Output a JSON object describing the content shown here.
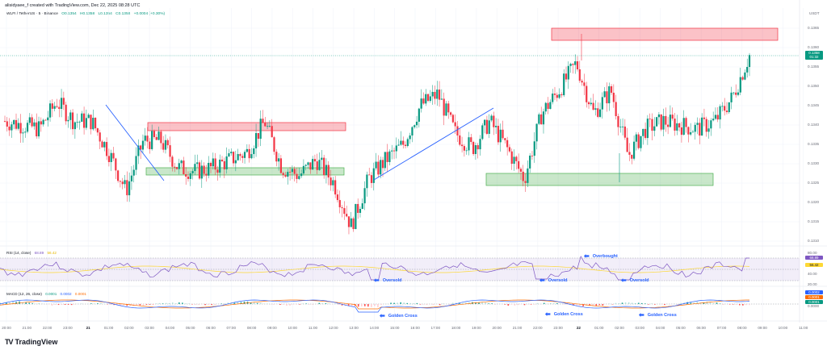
{
  "header": {
    "credit": "alisidyaee_f created with TradingView.com, Dec 22, 2025 08:28 UTC"
  },
  "symbol": {
    "title": "WLFI / TetherUS · 5 · Binance",
    "open": "O0.1354",
    "high": "H0.1358",
    "low": "L0.1354",
    "close": "C0.1358",
    "change": "+0.0004 (+0.30%)"
  },
  "price_axis": {
    "currency": "USDT",
    "ticks": [
      "0.1365",
      "0.1360",
      "0.1355",
      "0.1350",
      "0.1345",
      "0.1340",
      "0.1335",
      "0.1330",
      "0.1325",
      "0.1320",
      "0.1315",
      "0.1310"
    ],
    "current_price": "0.1358",
    "countdown": "01:32"
  },
  "rsi": {
    "label": "RSI (14, close)",
    "value": "68.89",
    "ma_value": "56.42",
    "ticks": [
      "80.00",
      "40.00",
      "20.00"
    ]
  },
  "macd": {
    "label": "MACD (12, 26, close)",
    "hist": "0.0001",
    "macd": "0.0002",
    "signal": "0.0001",
    "tag_macd": "0.0002",
    "tag_signal": "0.0001",
    "tag_hist": "0.0001",
    "zero": "0.0000"
  },
  "time_axis": [
    "20:00",
    "21:00",
    "22:00",
    "23:00",
    "21",
    "01:00",
    "02:00",
    "03:00",
    "04:00",
    "05:00",
    "06:00",
    "07:00",
    "08:00",
    "09:00",
    "10:00",
    "11:00",
    "12:00",
    "13:00",
    "14:00",
    "15:00",
    "16:00",
    "17:00",
    "18:00",
    "19:00",
    "20:00",
    "21:00",
    "22:00",
    "23:00",
    "22",
    "01:00",
    "02:00",
    "03:00",
    "04:00",
    "05:00",
    "06:00",
    "07:00",
    "08:00",
    "09:00",
    "10:00",
    "11:00"
  ],
  "annotations": {
    "overbought": "Overbought",
    "oversold": [
      "Oversold",
      "Oversold",
      "Oversold"
    ],
    "golden_cross": [
      "Golden Cross",
      "Golden Cross",
      "Golden Cross"
    ]
  },
  "branding": {
    "logo": "TradingView"
  },
  "colors": {
    "up": "#089981",
    "down": "#f23645",
    "resistance_zone": "#f7a8b0",
    "support_zone": "#a5d6a7",
    "trendline": "#2962ff",
    "rsi_line": "#7e57c2",
    "rsi_ma": "#fdd835",
    "macd_line": "#2962ff",
    "signal_line": "#ff6d00",
    "annotation": "#2962ff"
  },
  "chart_data": {
    "type": "candlestick",
    "title": "WLFI / TetherUS · 5 · Binance",
    "xlabel": "",
    "ylabel": "USDT",
    "ylim": [
      0.1308,
      0.1368
    ],
    "x_range": [
      "Dec 20 20:00",
      "Dec 22 08:28"
    ],
    "approx_close_path": [
      {
        "t": "20:00",
        "p": 0.1341
      },
      {
        "t": "21:00",
        "p": 0.134
      },
      {
        "t": "22:00",
        "p": 0.1339
      },
      {
        "t": "23:00",
        "p": 0.1346
      },
      {
        "t": "21",
        "p": 0.1341
      },
      {
        "t": "01:00",
        "p": 0.1341
      },
      {
        "t": "02:00",
        "p": 0.1333
      },
      {
        "t": "03:00",
        "p": 0.1323
      },
      {
        "t": "03:30",
        "p": 0.1336
      },
      {
        "t": "04:00",
        "p": 0.1336
      },
      {
        "t": "05:00",
        "p": 0.1329
      },
      {
        "t": "06:00",
        "p": 0.1328
      },
      {
        "t": "07:00",
        "p": 0.1329
      },
      {
        "t": "08:00",
        "p": 0.1331
      },
      {
        "t": "09:00",
        "p": 0.1333
      },
      {
        "t": "10:00",
        "p": 0.1341
      },
      {
        "t": "11:00",
        "p": 0.1329
      },
      {
        "t": "12:00",
        "p": 0.1327
      },
      {
        "t": "13:00",
        "p": 0.1331
      },
      {
        "t": "13:30",
        "p": 0.1325
      },
      {
        "t": "14:00",
        "p": 0.1314
      },
      {
        "t": "14:30",
        "p": 0.1326
      },
      {
        "t": "15:00",
        "p": 0.1331
      },
      {
        "t": "16:00",
        "p": 0.1335
      },
      {
        "t": "16:30",
        "p": 0.1345
      },
      {
        "t": "17:00",
        "p": 0.1348
      },
      {
        "t": "18:00",
        "p": 0.1338
      },
      {
        "t": "19:00",
        "p": 0.1334
      },
      {
        "t": "20:00",
        "p": 0.1341
      },
      {
        "t": "21:00",
        "p": 0.1334
      },
      {
        "t": "22:00",
        "p": 0.1326
      },
      {
        "t": "23:00",
        "p": 0.1343
      },
      {
        "t": "23:30",
        "p": 0.1349
      },
      {
        "t": "22",
        "p": 0.1356
      },
      {
        "t": "01:00",
        "p": 0.1343
      },
      {
        "t": "01:30",
        "p": 0.1349
      },
      {
        "t": "02:00",
        "p": 0.1332
      },
      {
        "t": "03:00",
        "p": 0.1339
      },
      {
        "t": "04:00",
        "p": 0.1341
      },
      {
        "t": "05:00",
        "p": 0.134
      },
      {
        "t": "06:00",
        "p": 0.1339
      },
      {
        "t": "07:00",
        "p": 0.1341
      },
      {
        "t": "08:00",
        "p": 0.1347
      },
      {
        "t": "08:28",
        "p": 0.1358
      }
    ],
    "zones": [
      {
        "type": "resistance",
        "from": "Dec 21 03:00",
        "to": "Dec 21 12:30",
        "low": 0.1339,
        "high": 0.1341
      },
      {
        "type": "support",
        "from": "Dec 21 03:00",
        "to": "Dec 21 12:30",
        "low": 0.1328,
        "high": 0.133
      },
      {
        "type": "resistance",
        "from": "Dec 21 23:00",
        "to": "Dec 22 10:00",
        "low": 0.1362,
        "high": 0.1365
      },
      {
        "type": "support",
        "from": "Dec 21 20:00",
        "to": "Dec 22 07:30",
        "low": 0.1324,
        "high": 0.1327
      }
    ],
    "trendlines": [
      {
        "from": {
          "t": "Dec 21 01:00",
          "p": 0.1345
        },
        "to": {
          "t": "Dec 21 03:00",
          "p": 0.1326
        }
      },
      {
        "from": {
          "t": "Dec 21 14:00",
          "p": 0.1324
        },
        "to": {
          "t": "Dec 21 19:50",
          "p": 0.1344
        }
      }
    ],
    "indicators": {
      "rsi": {
        "params": "14, close",
        "value": 68.89,
        "ma": 56.42,
        "bands": [
          70,
          50,
          30
        ],
        "ylim": [
          20,
          80
        ]
      },
      "macd": {
        "params": "12, 26, close",
        "hist": 0.0001,
        "macd": 0.0002,
        "signal": 0.0001
      }
    },
    "grid": true,
    "legend_position": "top-left"
  }
}
